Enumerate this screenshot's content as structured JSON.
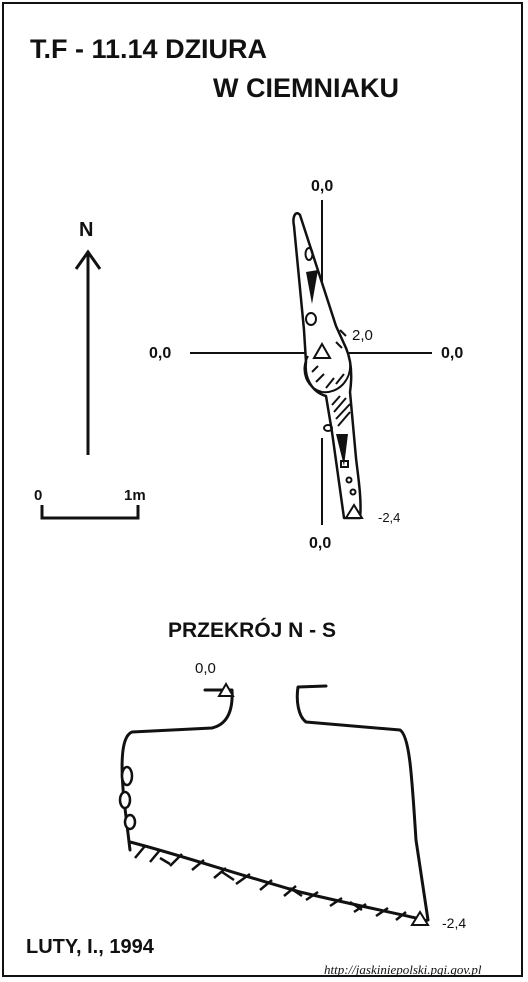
{
  "header": {
    "title_line1": "T.F - 11.14  DZIURA",
    "title_line2": "W CIEMNIAKU"
  },
  "plan": {
    "north_label": "N",
    "scale_start": "0",
    "scale_end": "1m",
    "labels": {
      "top": "0,0",
      "left": "0,0",
      "right": "0,0",
      "bottom": "0,0",
      "entrance_height": "2,0",
      "end_depth": "-2,4"
    }
  },
  "section": {
    "title": "PRZEKRÓJ N - S",
    "entrance_label": "0,0",
    "bottom_label": "-2,4"
  },
  "footer": {
    "author": "LUTY, I., 1994",
    "source_url": "http://jaskiniepolski.pgi.gov.pl"
  },
  "colors": {
    "ink": "#111111",
    "background": "#ffffff"
  }
}
